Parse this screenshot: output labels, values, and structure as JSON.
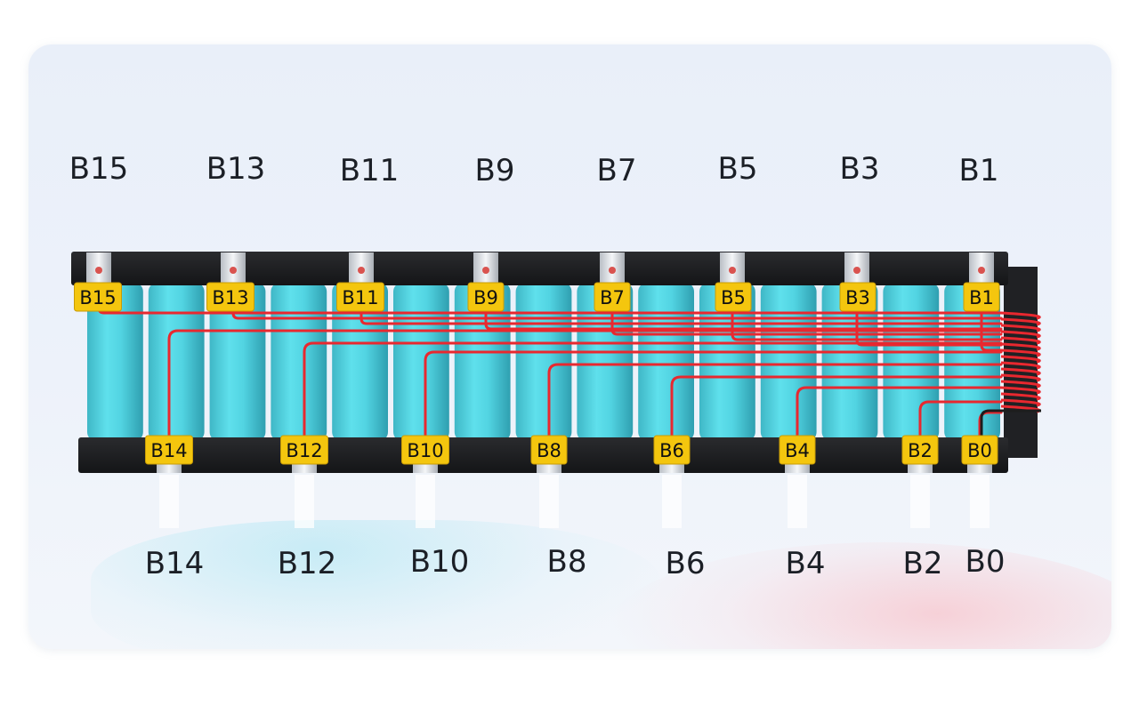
{
  "labels": {
    "top_outer": [
      "B15",
      "B13",
      "B11",
      "B9",
      "B7",
      "B5",
      "B3",
      "B1"
    ],
    "bottom_outer": [
      "B14",
      "B12",
      "B10",
      "B8",
      "B6",
      "B4",
      "B2",
      "B0"
    ],
    "top_tags": [
      "B15",
      "B13",
      "B11",
      "B9",
      "B7",
      "B5",
      "B3",
      "B1"
    ],
    "bottom_tags": [
      "B14",
      "B12",
      "B10",
      "B8",
      "B6",
      "B4",
      "B2",
      "B0"
    ]
  },
  "colors": {
    "cell": "#4fd3e0",
    "cell_shadow": "#36a9b8",
    "holder": "#1e1f22",
    "wire": "#e8282f",
    "tag": "#f4c60e"
  }
}
